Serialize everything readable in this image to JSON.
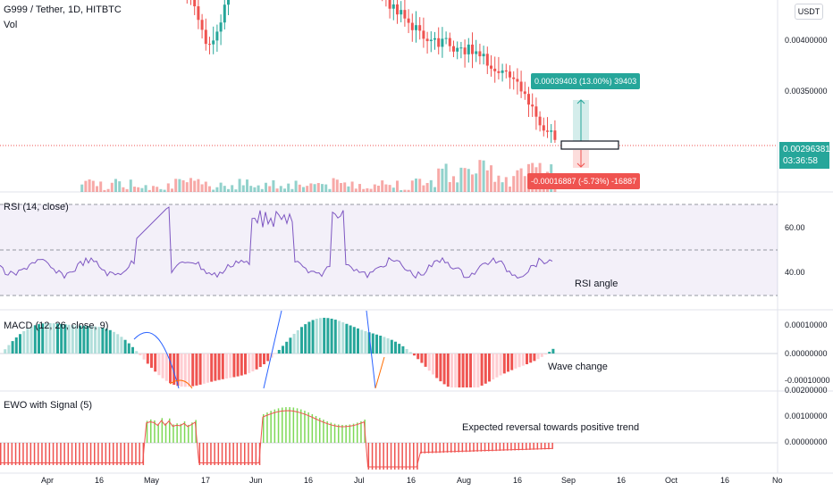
{
  "header": {
    "symbol": "G999 / Tether, 1D, HITBTC",
    "volume_label": "Vol",
    "currency_button": "USDT"
  },
  "price_axis": {
    "labels": [
      "0.00400000",
      "0.00350000",
      "0.00296381"
    ],
    "countdown": "03:36:58"
  },
  "position_tool": {
    "profit_label": "0.00039403 (13.00%) 39403",
    "loss_label": "-0.00016887 (-5.73%) -16887",
    "profit_color": "#26a69a",
    "loss_color": "#ef5350"
  },
  "rsi": {
    "title": "RSI (14, close)",
    "axis": [
      "60.00",
      "40.00"
    ],
    "annotation": "RSI angle",
    "color": "#7e57c2"
  },
  "macd": {
    "title": "MACD (12, 26, close, 9)",
    "axis": [
      "0.00010000",
      "0.00000000",
      "-0.00010000"
    ],
    "annotation": "Wave change"
  },
  "ewo": {
    "title": "EWO with Signal (5)",
    "axis": [
      "0.00200000",
      "0.00100000",
      "0.00000000"
    ],
    "annotation": "Expected reversal towards positive trend"
  },
  "time_axis": {
    "labels": [
      "Apr",
      "16",
      "May",
      "17",
      "Jun",
      "16",
      "Jul",
      "16",
      "Aug",
      "16",
      "Sep",
      "16",
      "Oct",
      "16",
      "No"
    ]
  },
  "colors": {
    "up": "#26a69a",
    "down": "#ef5350",
    "macd_up_strong": "#26a69a",
    "macd_up_weak": "#b2dfdb",
    "macd_down_strong": "#ef5350",
    "macd_down_weak": "#ffcdd2",
    "ewo_up": "#7ed957",
    "ewo_down": "#ef5350"
  }
}
